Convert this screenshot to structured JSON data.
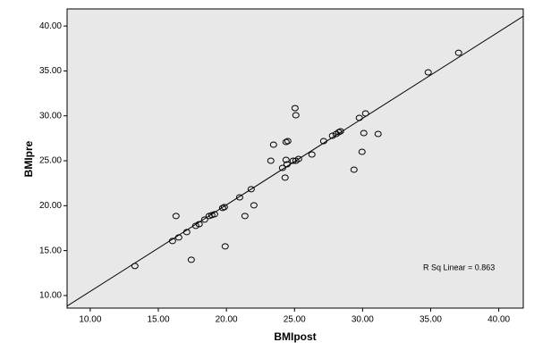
{
  "chart_data": {
    "type": "scatter",
    "x_label": "BMIpost",
    "y_label": "BMIpre",
    "annotation": "R Sq Linear = 0.863",
    "x": [
      13.28,
      16.04,
      16.3,
      16.5,
      17.09,
      17.42,
      17.75,
      18.0,
      18.4,
      18.73,
      18.93,
      19.13,
      19.72,
      19.85,
      19.91,
      20.97,
      21.36,
      21.82,
      22.02,
      23.26,
      23.46,
      24.12,
      24.31,
      24.45,
      24.38,
      24.38,
      24.51,
      24.9,
      25.04,
      25.1,
      25.1,
      25.3,
      26.28,
      27.14,
      27.79,
      28.06,
      28.25,
      28.38,
      29.37,
      29.76,
      29.96,
      30.09,
      30.22,
      31.14,
      34.82,
      37.05
    ],
    "y": [
      13.29,
      16.07,
      18.85,
      16.46,
      17.06,
      13.98,
      17.76,
      17.95,
      18.45,
      18.85,
      18.95,
      19.05,
      19.74,
      19.84,
      15.47,
      20.93,
      18.85,
      21.83,
      20.04,
      25.0,
      26.79,
      24.21,
      23.12,
      24.61,
      25.1,
      27.09,
      27.19,
      25.0,
      30.86,
      30.07,
      25.0,
      25.2,
      25.7,
      27.19,
      27.79,
      27.98,
      28.18,
      28.28,
      24.01,
      29.77,
      26.0,
      28.08,
      30.27,
      27.98,
      34.84,
      37.02
    ],
    "fit_line": {
      "intercept": 0.83,
      "slope": 0.963
    },
    "xlim": [
      8.3,
      41.8
    ],
    "ylim": [
      8.6,
      41.9
    ],
    "xticks": [
      {
        "value": 10,
        "label": "10.00"
      },
      {
        "value": 15,
        "label": "15.00"
      },
      {
        "value": 20,
        "label": "20.00"
      },
      {
        "value": 25,
        "label": "25.00"
      },
      {
        "value": 30,
        "label": "30.00"
      },
      {
        "value": 35,
        "label": "35.00"
      },
      {
        "value": 40,
        "label": "40.00"
      }
    ],
    "yticks": [
      {
        "value": 10,
        "label": "10.00"
      },
      {
        "value": 15,
        "label": "15.00"
      },
      {
        "value": 20,
        "label": "20.00"
      },
      {
        "value": 25,
        "label": "25.00"
      },
      {
        "value": 30,
        "label": "30.00"
      },
      {
        "value": 35,
        "label": "35.00"
      },
      {
        "value": 40,
        "label": "40.00"
      }
    ],
    "color": "#000000",
    "background": "#e8e8e8"
  }
}
